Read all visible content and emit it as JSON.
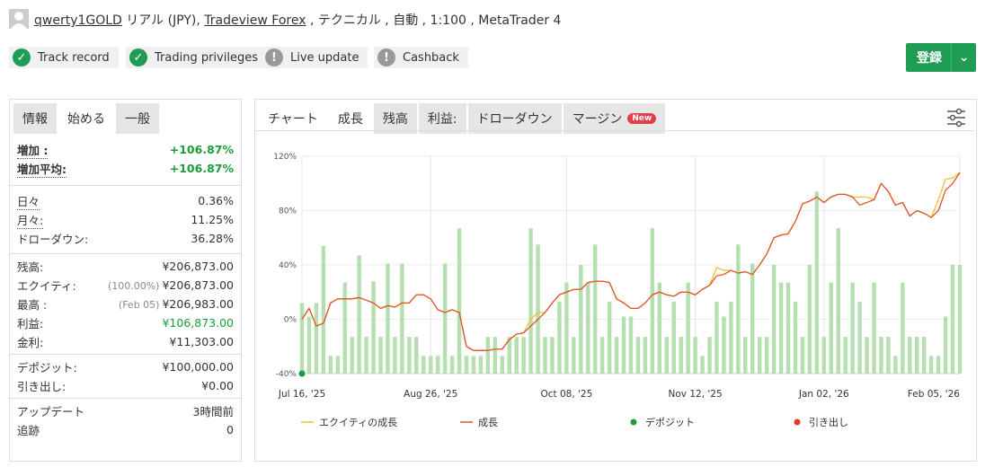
{
  "header": {
    "user": "qwerty1GOLD",
    "account": "リアル (JPY),",
    "broker": "Tradeview Forex",
    "details": ", テクニカル , 自動 , 1:100 , MetaTrader 4"
  },
  "badges": [
    {
      "label": "Track record",
      "ok": true
    },
    {
      "label": "Trading privileges",
      "ok": true
    },
    {
      "label": "Live update",
      "ok": false
    },
    {
      "label": "Cashback",
      "ok": false
    }
  ],
  "button": "登録",
  "left_tabs": [
    "情報",
    "始める",
    "一般"
  ],
  "left_active_tab": 1,
  "stats": [
    [
      {
        "label": "増加 :",
        "value": "+106.87%",
        "color": "#1a9e3a"
      },
      {
        "label": "増加平均:",
        "value": "+106.87%",
        "color": "#1a9e3a"
      }
    ],
    [
      {
        "label": "日々",
        "value": "0.36%"
      },
      {
        "label": "月々:",
        "value": "11.25%"
      },
      {
        "label": "ドローダウン:",
        "value": "36.28%"
      }
    ],
    [
      {
        "label": "残高:",
        "value": "¥206,873.00"
      },
      {
        "label": "エクイティ:",
        "note": "(100.00%)",
        "value": "¥206,873.00"
      },
      {
        "label": "最高 :",
        "note": "(Feb 05)",
        "value": "¥206,983.00"
      },
      {
        "label": "利益:",
        "value": "¥106,873.00",
        "color": "#1a9e3a"
      },
      {
        "label": "金利:",
        "value": "¥11,303.00"
      }
    ],
    [
      {
        "label": "デポジット:",
        "value": "¥100,000.00"
      },
      {
        "label": "引き出し:",
        "value": "¥0.00"
      }
    ],
    [
      {
        "label": "アップデート",
        "value": "3時間前"
      },
      {
        "label": "追跡",
        "value": "0"
      }
    ]
  ],
  "chart_tabs": [
    "チャート",
    "成長",
    "残高",
    "利益:",
    "ドローダウン",
    "マージン"
  ],
  "chart_active_tab": 1,
  "new_badge": "New",
  "chart_data": {
    "type": "line",
    "categories": [
      "Jul 16, '25",
      null,
      null,
      null,
      null,
      null,
      null,
      null,
      null,
      null,
      null,
      null,
      null,
      null,
      null,
      null,
      null,
      null,
      "Aug 26, '25",
      null,
      null,
      null,
      null,
      null,
      null,
      null,
      null,
      null,
      null,
      null,
      null,
      null,
      null,
      null,
      null,
      null,
      null,
      "Oct 08, '25",
      null,
      null,
      null,
      null,
      null,
      null,
      null,
      null,
      null,
      null,
      null,
      null,
      null,
      null,
      null,
      null,
      null,
      "Nov 12, '25",
      null,
      null,
      null,
      null,
      null,
      null,
      null,
      null,
      null,
      null,
      null,
      null,
      null,
      null,
      null,
      null,
      null,
      "Jan 02, '26",
      null,
      null,
      null,
      null,
      null,
      null,
      null,
      null,
      null,
      null,
      null,
      null,
      null,
      null,
      null,
      null,
      null,
      null,
      "Feb 05, '26"
    ],
    "ylim": [
      -40,
      120
    ],
    "yticks": [
      {
        "value": -40,
        "label": "-40%"
      },
      {
        "value": 0,
        "label": "0%"
      },
      {
        "value": 40,
        "label": "40%"
      },
      {
        "value": 80,
        "label": "80%"
      },
      {
        "value": 120,
        "label": "120%"
      }
    ],
    "grid": true,
    "bars": {
      "color": "#b5dfb0",
      "values": [
        12,
        2,
        12,
        54,
        -27,
        -27,
        27,
        -13,
        47,
        -13,
        28,
        -13,
        41,
        -13,
        41,
        -13,
        -13,
        -27,
        -27,
        -27,
        41,
        -27,
        67,
        -27,
        -27,
        -27,
        -13,
        -13,
        -27,
        -13,
        -13,
        -13,
        67,
        55,
        -13,
        -13,
        13,
        27,
        -13,
        40,
        27,
        55,
        -13,
        13,
        -13,
        2,
        2,
        -13,
        -13,
        67,
        27,
        -13,
        13,
        -13,
        27,
        -13,
        -27,
        -13,
        13,
        2,
        13,
        55,
        -13,
        41,
        -13,
        -13,
        40,
        27,
        27,
        13,
        -13,
        40,
        94,
        -13,
        27,
        67,
        -13,
        27,
        13,
        -13,
        27,
        -13,
        -13,
        -27,
        27,
        -13,
        -13,
        -13,
        -27,
        -27,
        2,
        40,
        40
      ]
    },
    "series": [
      {
        "name": "エクイティの成長",
        "type": "line",
        "color": "#f2c12e",
        "values": [
          0,
          8,
          -5,
          -3,
          12,
          15,
          15,
          15,
          16,
          14,
          12,
          8,
          10,
          9,
          12,
          12,
          18,
          18,
          15,
          7,
          5,
          7,
          5,
          -20,
          -23,
          -23,
          -23,
          -22,
          -22,
          -15,
          -11,
          -10,
          0,
          5,
          5,
          12,
          18,
          20,
          22,
          22,
          27,
          28,
          28,
          27,
          15,
          12,
          8,
          8,
          12,
          18,
          20,
          18,
          17,
          20,
          20,
          18,
          22,
          25,
          38,
          36,
          36,
          34,
          35,
          33,
          40,
          48,
          60,
          62,
          63,
          72,
          85,
          87,
          90,
          86,
          90,
          92,
          92,
          90,
          90,
          90,
          88,
          100,
          94,
          84,
          86,
          76,
          80,
          78,
          75,
          88,
          103,
          104,
          108
        ]
      },
      {
        "name": "成長",
        "type": "line",
        "color": "#e0522b",
        "values": [
          0,
          8,
          -5,
          -3,
          12,
          15,
          15,
          15,
          16,
          14,
          12,
          8,
          10,
          9,
          12,
          12,
          18,
          18,
          15,
          7,
          5,
          7,
          5,
          -20,
          -23,
          -23,
          -23,
          -22,
          -22,
          -15,
          -11,
          -10,
          -5,
          0,
          5,
          12,
          18,
          20,
          22,
          22,
          27,
          28,
          28,
          27,
          15,
          12,
          8,
          8,
          12,
          18,
          20,
          18,
          17,
          20,
          20,
          18,
          22,
          25,
          32,
          33,
          36,
          34,
          35,
          33,
          40,
          48,
          60,
          62,
          63,
          72,
          85,
          87,
          90,
          86,
          90,
          92,
          92,
          90,
          84,
          86,
          88,
          100,
          94,
          84,
          86,
          76,
          80,
          78,
          75,
          80,
          95,
          100,
          108
        ]
      },
      {
        "name": "デポジット",
        "type": "scatter",
        "color": "#1a9e3a",
        "values": [
          -40,
          null,
          null,
          null,
          null,
          null,
          null,
          null,
          null,
          null,
          null,
          null,
          null,
          null,
          null,
          null,
          null,
          null,
          null,
          null,
          null,
          null,
          null,
          null,
          null,
          null,
          null,
          null,
          null,
          null,
          null,
          null,
          null,
          null,
          null,
          null,
          null,
          null,
          null,
          null,
          null,
          null,
          null,
          null,
          null,
          null,
          null,
          null,
          null,
          null,
          null,
          null,
          null,
          null,
          null,
          null,
          null,
          null,
          null,
          null,
          null,
          null,
          null,
          null,
          null,
          null,
          null,
          null,
          null,
          null,
          null,
          null,
          null,
          null,
          null,
          null,
          null,
          null,
          null,
          null,
          null,
          null,
          null,
          null,
          null,
          null,
          null,
          null,
          null,
          null,
          null,
          null,
          null
        ]
      },
      {
        "name": "引き出し",
        "type": "scatter",
        "color": "#e03a2b",
        "values": [
          null,
          null,
          null,
          null,
          null,
          null,
          null,
          null,
          null,
          null,
          null,
          null,
          null,
          null,
          null,
          null,
          null,
          null,
          null,
          null,
          null,
          null,
          null,
          null,
          null,
          null,
          null,
          null,
          null,
          null,
          null,
          null,
          null,
          null,
          null,
          null,
          null,
          null,
          null,
          null,
          null,
          null,
          null,
          null,
          null,
          null,
          null,
          null,
          null,
          null,
          null,
          null,
          null,
          null,
          null,
          null,
          null,
          null,
          null,
          null,
          null,
          null,
          null,
          null,
          null,
          null,
          null,
          null,
          null,
          null,
          null,
          null,
          null,
          null,
          null,
          null,
          null,
          null,
          null,
          null,
          null,
          null,
          null,
          null,
          null,
          null,
          null,
          null,
          null,
          null,
          null,
          null,
          null
        ]
      }
    ]
  }
}
